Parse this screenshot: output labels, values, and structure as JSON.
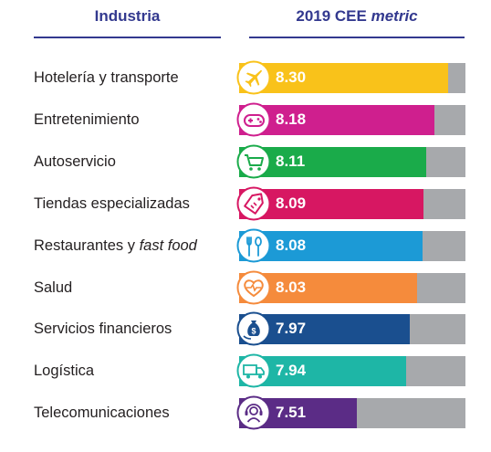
{
  "header": {
    "industry": "Industria",
    "metric_prefix": "2019 CEE ",
    "metric_italic": "metric"
  },
  "chart_data": {
    "type": "bar",
    "orientation": "horizontal",
    "xlim": [
      6.5,
      8.45
    ],
    "categories": [
      "Hotelería y transporte",
      "Entretenimiento",
      "Autoservicio",
      "Tiendas especializadas",
      "Restaurantes y fast food",
      "Salud",
      "Servicios financieros",
      "Logística",
      "Telecomunicaciones"
    ],
    "values": [
      8.3,
      8.18,
      8.11,
      8.09,
      8.08,
      8.03,
      7.97,
      7.94,
      7.51
    ],
    "value_labels": [
      "8.30",
      "8.18",
      "8.11",
      "8.09",
      "8.08",
      "8.03",
      "7.97",
      "7.94",
      "7.51"
    ],
    "colors": [
      "#f9c21a",
      "#cf1f8e",
      "#1aab4a",
      "#d71762",
      "#1c9ad6",
      "#f58b3c",
      "#1a4f8f",
      "#1eb6a6",
      "#5b2c86"
    ],
    "icons": [
      "airplane-icon",
      "gamepad-icon",
      "cart-icon",
      "price-tag-icon",
      "fork-spoon-icon",
      "heart-pulse-icon",
      "money-bag-icon",
      "truck-icon",
      "headset-icon"
    ]
  },
  "rows": [
    {
      "label": "Hotelería y transporte"
    },
    {
      "label": "Entretenimiento"
    },
    {
      "label": "Autoservicio"
    },
    {
      "label": "Tiendas especializadas"
    },
    {
      "label_prefix": "Restaurantes y ",
      "label_italic": "fast food"
    },
    {
      "label": "Salud"
    },
    {
      "label": "Servicios financieros"
    },
    {
      "label": "Logística"
    },
    {
      "label": "Telecomunicaciones"
    }
  ]
}
